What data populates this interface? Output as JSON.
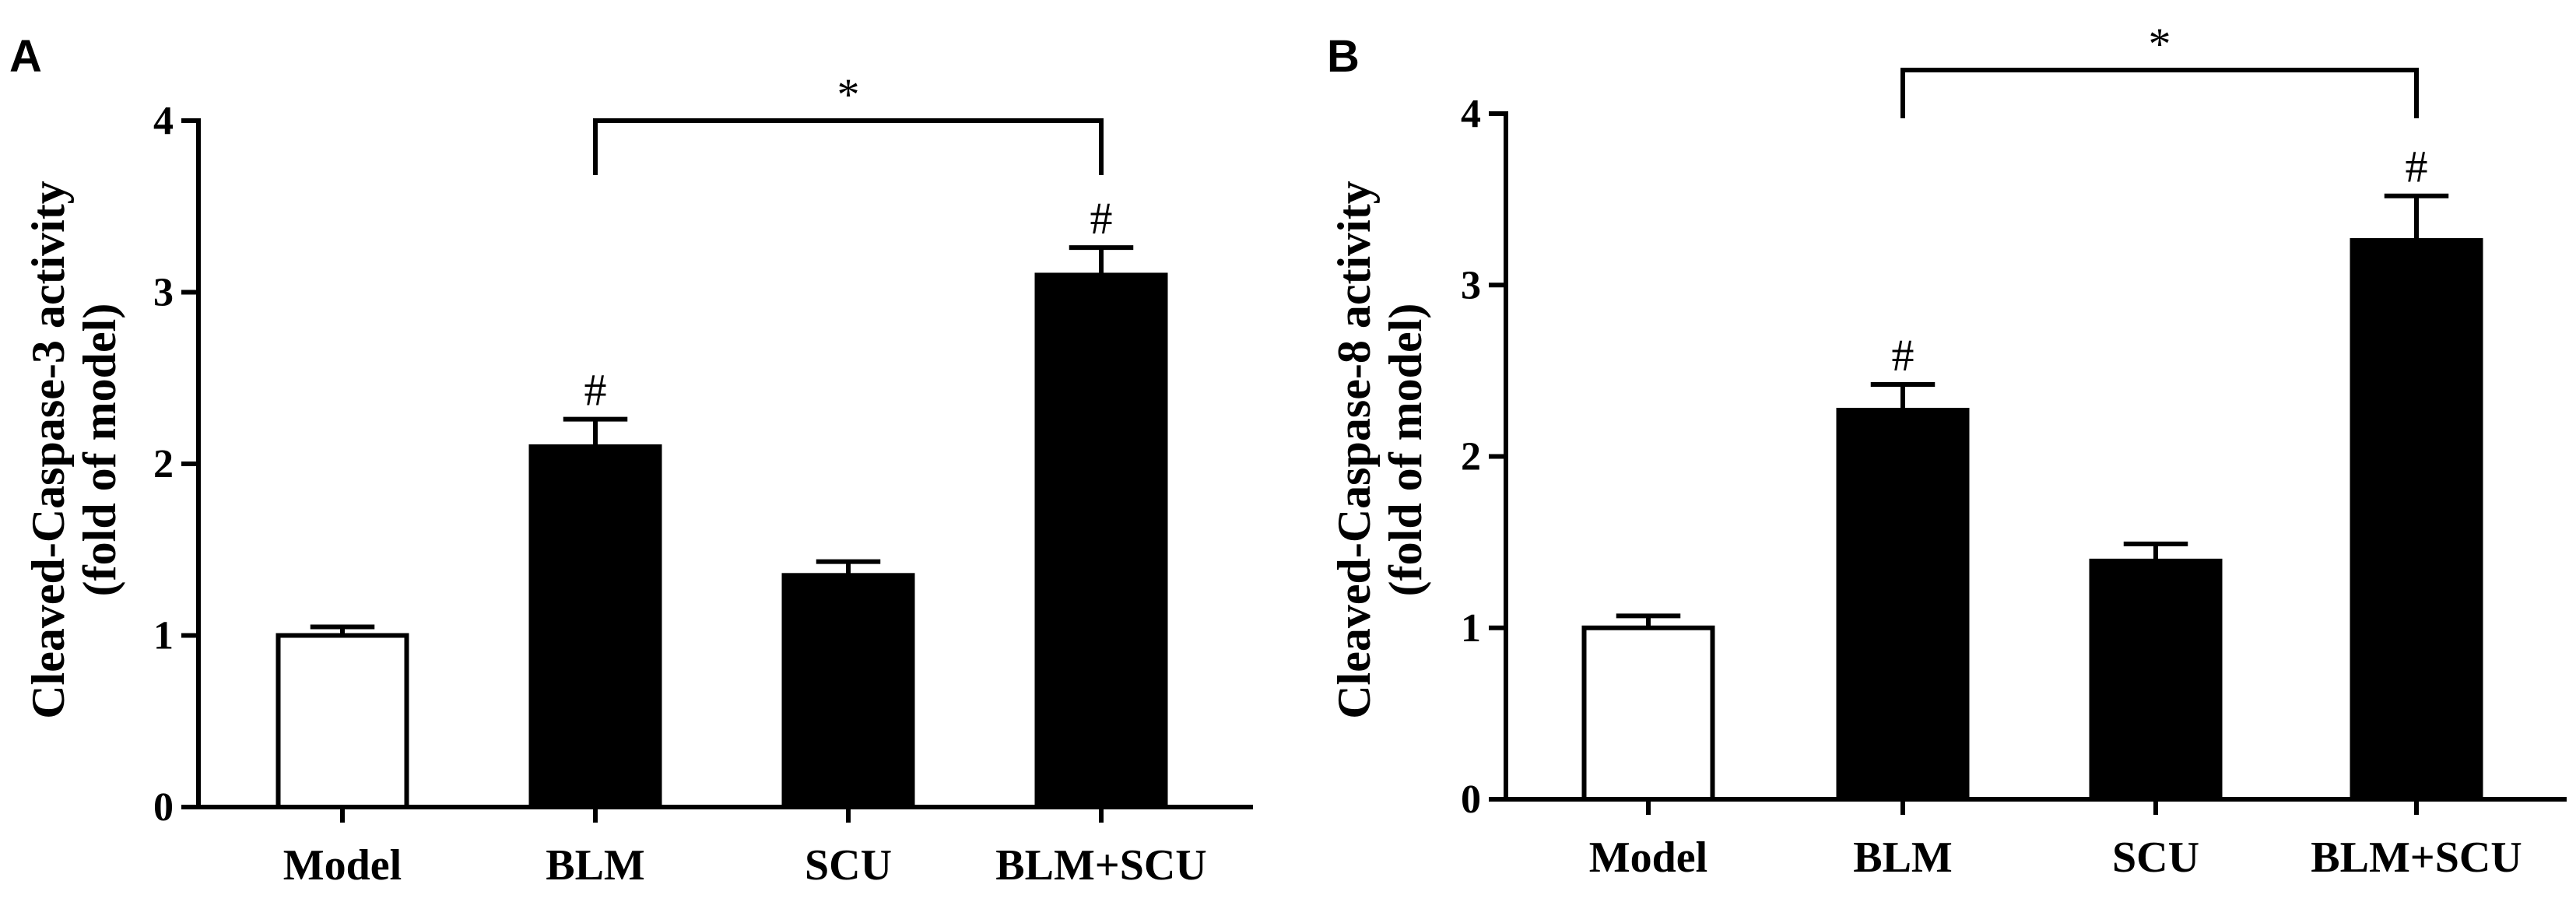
{
  "chart_data": [
    {
      "type": "bar",
      "panel": "A",
      "ylabel_line1": "Cleaved-Caspase-3 activity",
      "ylabel_line2": "(fold of model)",
      "categories": [
        "Model",
        "BLM",
        "SCU",
        "BLM+SCU"
      ],
      "values": [
        1.0,
        2.1,
        1.35,
        3.1
      ],
      "errors": [
        0.05,
        0.16,
        0.08,
        0.16
      ],
      "fill_colors": [
        "#ffffff",
        "#000000",
        "#000000",
        "#000000"
      ],
      "yticks": [
        "0",
        "1",
        "2",
        "3",
        "4"
      ],
      "ylim": [
        0,
        4
      ],
      "bar_marks": [
        "",
        "#",
        "",
        "#"
      ],
      "comparison": {
        "from": "BLM",
        "to": "BLM+SCU",
        "label": "*"
      },
      "grid": false,
      "legend": "none"
    },
    {
      "type": "bar",
      "panel": "B",
      "ylabel_line1": "Cleaved-Caspase-8 activity",
      "ylabel_line2": "(fold of model)",
      "categories": [
        "Model",
        "BLM",
        "SCU",
        "BLM+SCU"
      ],
      "values": [
        1.0,
        2.27,
        1.39,
        3.26
      ],
      "errors": [
        0.07,
        0.15,
        0.1,
        0.26
      ],
      "fill_colors": [
        "#ffffff",
        "#000000",
        "#000000",
        "#000000"
      ],
      "yticks": [
        "0",
        "1",
        "2",
        "3",
        "4"
      ],
      "ylim": [
        0,
        4
      ],
      "bar_marks": [
        "",
        "#",
        "",
        "#"
      ],
      "comparison": {
        "from": "BLM",
        "to": "BLM+SCU",
        "label": "*"
      },
      "grid": false,
      "legend": "none"
    }
  ]
}
